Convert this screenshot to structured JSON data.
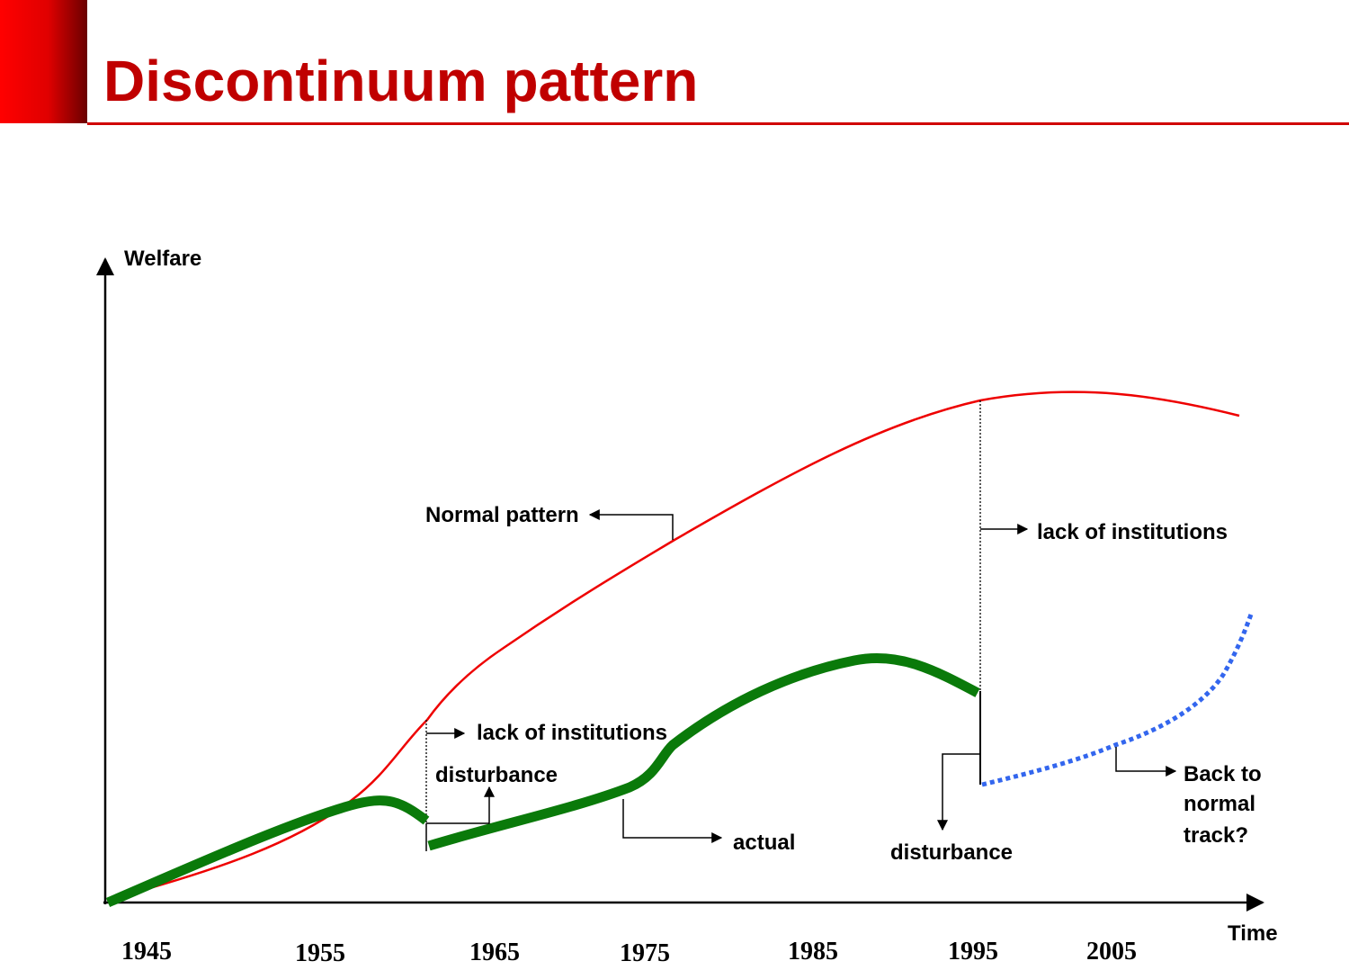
{
  "header": {
    "title": "Discontinuum pattern"
  },
  "diagram": {
    "y_axis_label": "Welfare",
    "x_axis_label": "Time",
    "x_labels": [
      "1945",
      "1955",
      "1965",
      "1975",
      "1985",
      "1995",
      "2005"
    ],
    "annotations": [
      "Normal pattern",
      "lack of institutions",
      "disturbance",
      "actual",
      "disturbance",
      "lack of institutions"
    ],
    "back_to_normal": [
      "Back to",
      "normal",
      "track?"
    ]
  }
}
